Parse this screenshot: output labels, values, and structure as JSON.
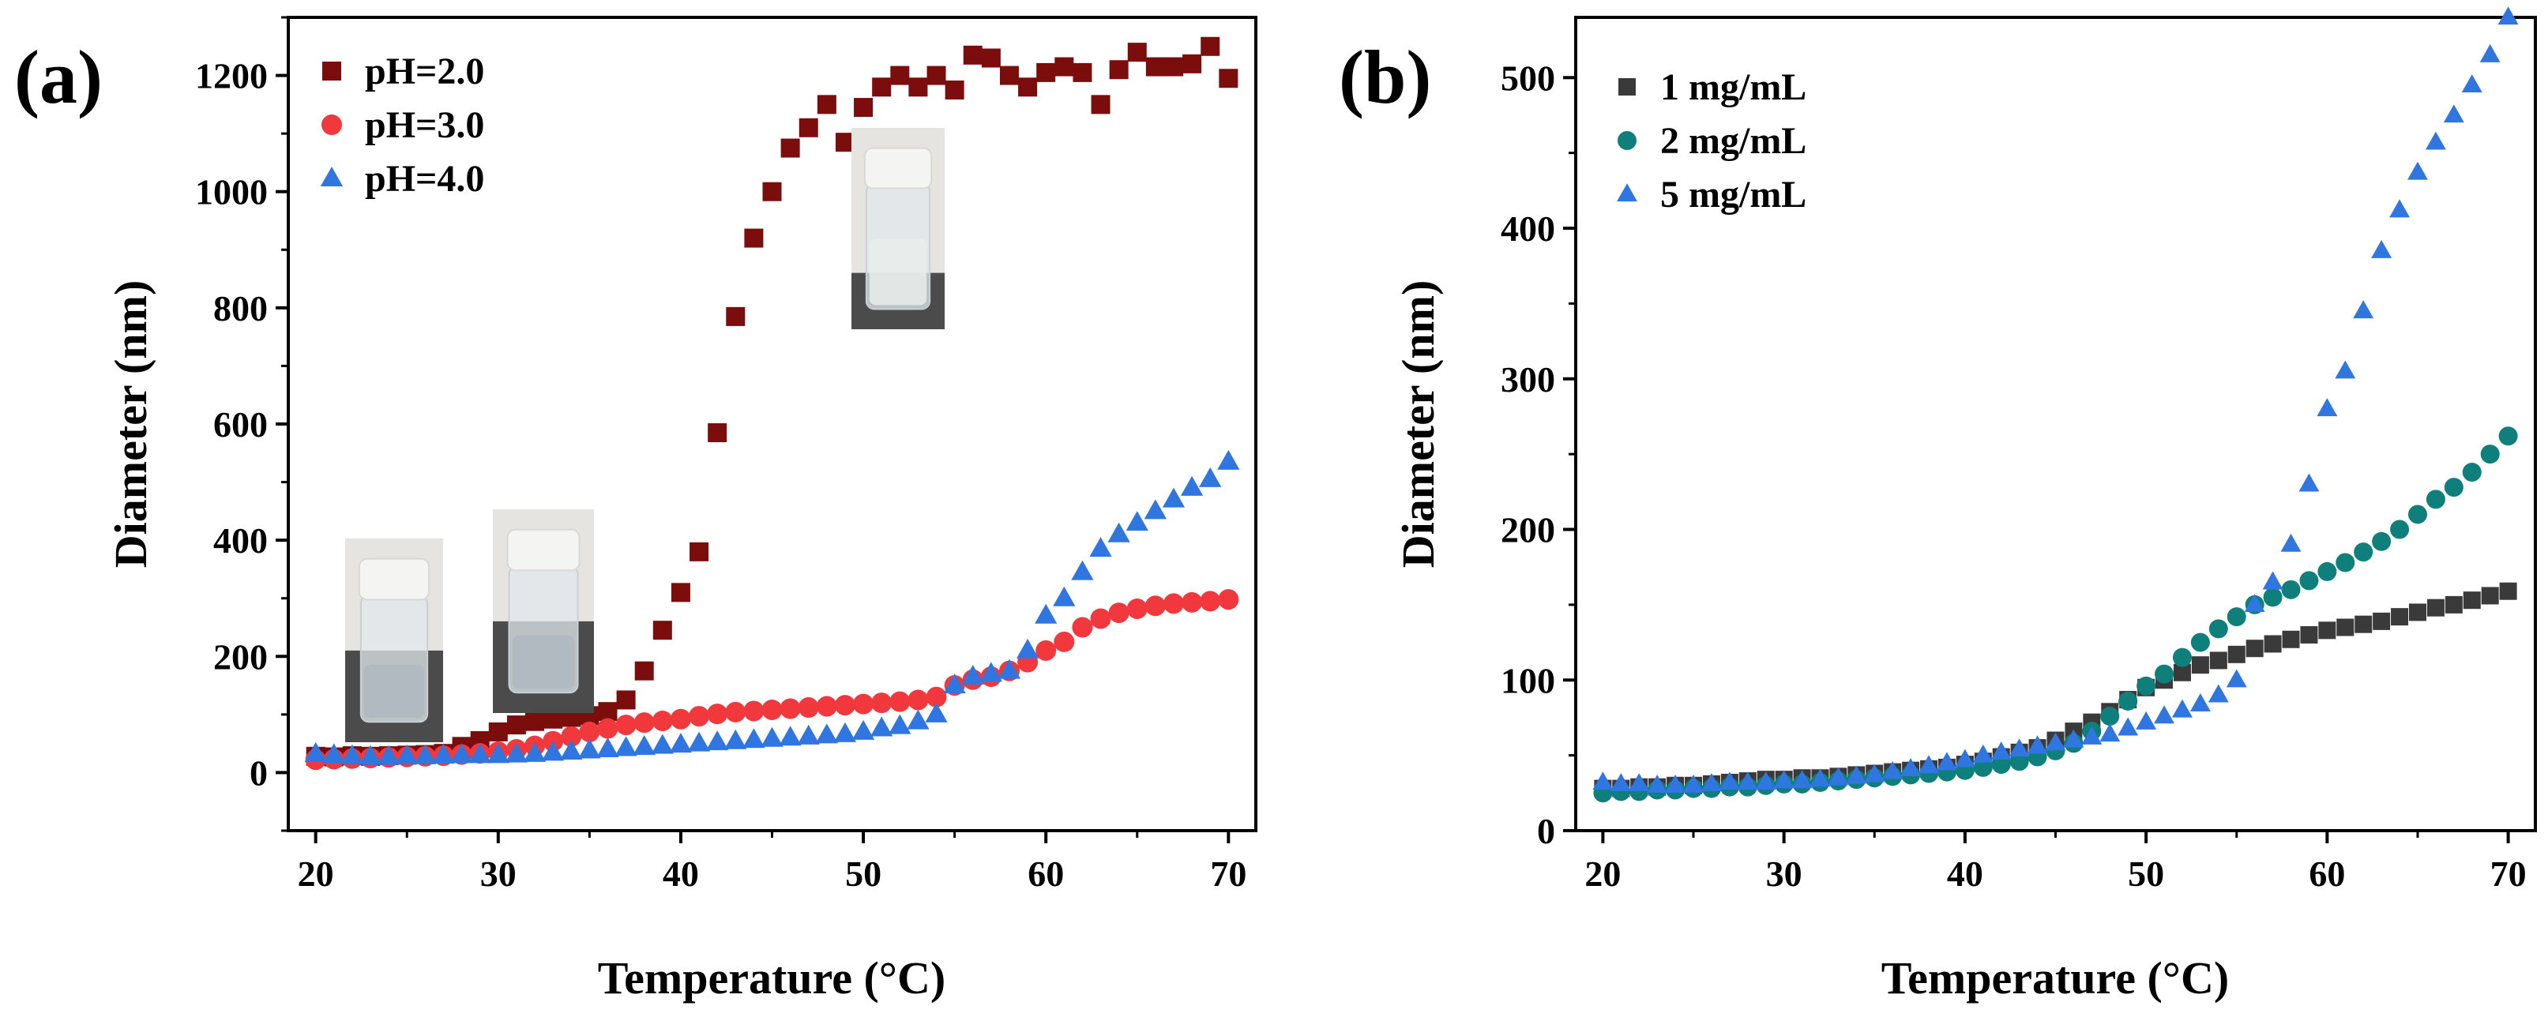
{
  "chart_data": [
    {
      "type": "scatter",
      "panel_label": "(a)",
      "xlabel": "Temperature (°C)",
      "ylabel": "Diameter (nm)",
      "xlim": [
        18.5,
        71.5
      ],
      "ylim": [
        -100,
        1300
      ],
      "xticks": [
        20,
        30,
        40,
        50,
        60,
        70
      ],
      "yticks": [
        0,
        200,
        400,
        600,
        800,
        1000,
        1200
      ],
      "legend_position": "top-left",
      "x": [
        20,
        21,
        22,
        23,
        24,
        25,
        26,
        27,
        28,
        29,
        30,
        31,
        32,
        33,
        34,
        35,
        36,
        37,
        38,
        39,
        40,
        41,
        42,
        43,
        44,
        45,
        46,
        47,
        48,
        49,
        50,
        51,
        52,
        53,
        54,
        55,
        56,
        57,
        58,
        59,
        60,
        61,
        62,
        63,
        64,
        65,
        66,
        67,
        68,
        69,
        70
      ],
      "series": [
        {
          "name": "pH=2.0",
          "marker": "square",
          "color": "#7b0d0d",
          "values": [
            28,
            27,
            29,
            28,
            29,
            30,
            31,
            33,
            45,
            55,
            70,
            82,
            88,
            92,
            95,
            98,
            105,
            125,
            175,
            245,
            310,
            380,
            585,
            785,
            920,
            1000,
            1075,
            1110,
            1150,
            1085,
            1145,
            1180,
            1200,
            1180,
            1200,
            1175,
            1235,
            1230,
            1200,
            1180,
            1205,
            1215,
            1205,
            1150,
            1210,
            1240,
            1215,
            1215,
            1220,
            1250,
            1195
          ]
        },
        {
          "name": "pH=3.0",
          "marker": "circle",
          "color": "#f0383d",
          "values": [
            22,
            23,
            24,
            25,
            26,
            27,
            28,
            29,
            31,
            33,
            36,
            40,
            46,
            54,
            62,
            70,
            76,
            82,
            86,
            89,
            92,
            97,
            101,
            104,
            106,
            108,
            110,
            112,
            114,
            116,
            118,
            120,
            122,
            125,
            130,
            150,
            160,
            165,
            175,
            190,
            210,
            225,
            250,
            265,
            275,
            282,
            287,
            291,
            293,
            295,
            298
          ]
        },
        {
          "name": "pH=4.0",
          "marker": "triangle",
          "color": "#2f76e0",
          "values": [
            32,
            30,
            28,
            27,
            27,
            28,
            28,
            29,
            30,
            30,
            30,
            31,
            32,
            34,
            36,
            38,
            40,
            42,
            44,
            46,
            48,
            50,
            52,
            54,
            56,
            58,
            60,
            62,
            64,
            66,
            70,
            76,
            80,
            88,
            100,
            150,
            165,
            170,
            175,
            210,
            270,
            300,
            345,
            385,
            410,
            430,
            450,
            470,
            490,
            505,
            535
          ]
        }
      ],
      "insets": [
        {
          "description": "vial at pH=4.0"
        },
        {
          "description": "vial at pH=3.0"
        },
        {
          "description": "vial at pH=2.0"
        }
      ]
    },
    {
      "type": "scatter",
      "panel_label": "(b)",
      "xlabel": "Temperature (°C)",
      "ylabel": "Diameter (nm)",
      "xlim": [
        18.5,
        71.5
      ],
      "ylim": [
        0,
        540
      ],
      "xticks": [
        20,
        30,
        40,
        50,
        60,
        70
      ],
      "yticks": [
        0,
        100,
        200,
        300,
        400,
        500
      ],
      "legend_position": "top-left",
      "x": [
        20,
        21,
        22,
        23,
        24,
        25,
        26,
        27,
        28,
        29,
        30,
        31,
        32,
        33,
        34,
        35,
        36,
        37,
        38,
        39,
        40,
        41,
        42,
        43,
        44,
        45,
        46,
        47,
        48,
        49,
        50,
        51,
        52,
        53,
        54,
        55,
        56,
        57,
        58,
        59,
        60,
        61,
        62,
        63,
        64,
        65,
        66,
        67,
        68,
        69,
        70
      ],
      "series": [
        {
          "name": "1 mg/mL",
          "marker": "square",
          "color": "#3a3a3a",
          "values": [
            28,
            28,
            29,
            29,
            30,
            30,
            31,
            32,
            33,
            34,
            34,
            35,
            35,
            36,
            37,
            38,
            39,
            40,
            41,
            42,
            44,
            46,
            49,
            52,
            55,
            60,
            66,
            72,
            79,
            87,
            95,
            100,
            105,
            110,
            113,
            117,
            121,
            124,
            127,
            130,
            133,
            135,
            137,
            139,
            142,
            145,
            148,
            150,
            153,
            156,
            159
          ]
        },
        {
          "name": "2 mg/mL",
          "marker": "circle",
          "color": "#0f7f7c",
          "values": [
            25,
            26,
            26,
            27,
            27,
            28,
            28,
            29,
            29,
            30,
            31,
            31,
            32,
            33,
            34,
            35,
            36,
            37,
            38,
            39,
            40,
            42,
            44,
            46,
            49,
            53,
            58,
            66,
            76,
            86,
            96,
            104,
            115,
            125,
            134,
            142,
            150,
            155,
            160,
            166,
            172,
            178,
            185,
            192,
            200,
            210,
            220,
            228,
            238,
            250,
            262
          ]
        },
        {
          "name": "5 mg/mL",
          "marker": "triangle",
          "color": "#2f76e0",
          "values": [
            32,
            31,
            31,
            30,
            30,
            30,
            31,
            32,
            32,
            32,
            33,
            33,
            34,
            35,
            36,
            37,
            39,
            41,
            43,
            45,
            47,
            50,
            52,
            54,
            56,
            58,
            60,
            62,
            64,
            68,
            72,
            76,
            80,
            84,
            90,
            100,
            150,
            165,
            190,
            230,
            280,
            305,
            345,
            385,
            412,
            437,
            457,
            475,
            495,
            515,
            540
          ]
        }
      ]
    }
  ]
}
